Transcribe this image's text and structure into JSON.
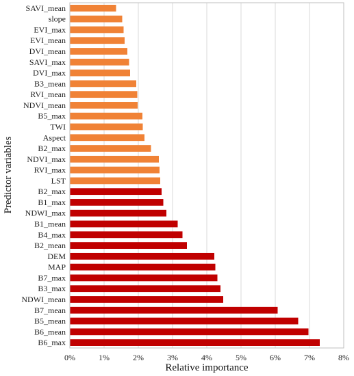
{
  "chart_data": {
    "type": "bar",
    "orientation": "horizontal",
    "xlabel": "Relative importance",
    "ylabel": "Predictor variables",
    "xlim": [
      0,
      8
    ],
    "x_ticks": [
      "0%",
      "1%",
      "2%",
      "3%",
      "4%",
      "5%",
      "6%",
      "7%",
      "8%"
    ],
    "grid": true,
    "legend": "none",
    "colors": {
      "orange": "#f08236",
      "red": "#c00000"
    },
    "bars": [
      {
        "label": "SAVI_mean",
        "value": 1.35,
        "color": "orange"
      },
      {
        "label": "slope",
        "value": 1.53,
        "color": "orange"
      },
      {
        "label": "EVI_max",
        "value": 1.57,
        "color": "orange"
      },
      {
        "label": "EVI_mean",
        "value": 1.6,
        "color": "orange"
      },
      {
        "label": "DVI_mean",
        "value": 1.68,
        "color": "orange"
      },
      {
        "label": "SAVI_max",
        "value": 1.73,
        "color": "orange"
      },
      {
        "label": "DVI_max",
        "value": 1.76,
        "color": "orange"
      },
      {
        "label": "B3_mean",
        "value": 1.94,
        "color": "orange"
      },
      {
        "label": "RVI_mean",
        "value": 1.97,
        "color": "orange"
      },
      {
        "label": "NDVI_mean",
        "value": 1.98,
        "color": "orange"
      },
      {
        "label": "B5_max",
        "value": 2.12,
        "color": "orange"
      },
      {
        "label": "TWI",
        "value": 2.13,
        "color": "orange"
      },
      {
        "label": "Aspect",
        "value": 2.18,
        "color": "orange"
      },
      {
        "label": "B2_max",
        "value": 2.37,
        "color": "orange"
      },
      {
        "label": "NDVI_max",
        "value": 2.6,
        "color": "orange"
      },
      {
        "label": "RVI_max",
        "value": 2.62,
        "color": "orange"
      },
      {
        "label": "LST",
        "value": 2.64,
        "color": "orange"
      },
      {
        "label": "B2_max",
        "value": 2.68,
        "color": "red"
      },
      {
        "label": "B1_max",
        "value": 2.73,
        "color": "red"
      },
      {
        "label": "NDWI_max",
        "value": 2.82,
        "color": "red"
      },
      {
        "label": "B1_mean",
        "value": 3.15,
        "color": "red"
      },
      {
        "label": "B4_max",
        "value": 3.29,
        "color": "red"
      },
      {
        "label": "B2_mean",
        "value": 3.42,
        "color": "red"
      },
      {
        "label": "DEM",
        "value": 4.22,
        "color": "red"
      },
      {
        "label": "MAP",
        "value": 4.25,
        "color": "red"
      },
      {
        "label": "B7_max",
        "value": 4.31,
        "color": "red"
      },
      {
        "label": "B3_max",
        "value": 4.4,
        "color": "red"
      },
      {
        "label": "NDWI_mean",
        "value": 4.48,
        "color": "red"
      },
      {
        "label": "B7_mean",
        "value": 6.07,
        "color": "red"
      },
      {
        "label": "B5_mean",
        "value": 6.67,
        "color": "red"
      },
      {
        "label": "B6_mean",
        "value": 6.97,
        "color": "red"
      },
      {
        "label": "B6_max",
        "value": 7.3,
        "color": "red"
      }
    ]
  }
}
